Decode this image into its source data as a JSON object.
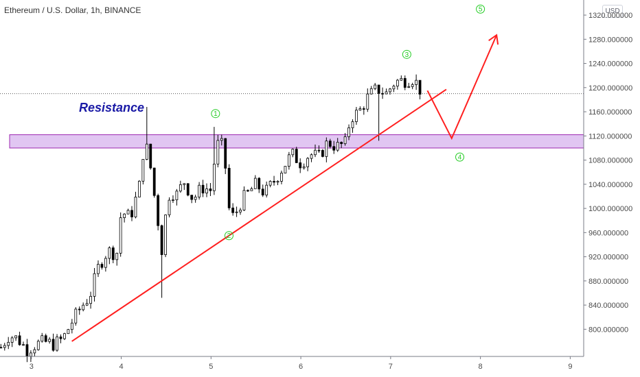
{
  "header": {
    "title": "Ethereum / U.S. Dollar, 1h, BINANCE",
    "currency_button": "USD"
  },
  "colors": {
    "resistance_fill": "#e1c6f2",
    "resistance_border": "#9c27b0",
    "drawing_line": "#ff1f1f",
    "wave_label": "#22cc22",
    "resistance_text": "#1a1aa6",
    "current_price_line": "#555555"
  },
  "chart_data": {
    "type": "candlestick",
    "title": "Ethereum / U.S. Dollar, 1h, BINANCE",
    "x_tick_labels": [
      "3",
      "4",
      "5",
      "6",
      "7",
      "8",
      "9"
    ],
    "x_ticks": [
      3,
      4,
      5,
      6,
      7,
      8,
      9
    ],
    "xlim": [
      2.65,
      9.15
    ],
    "y_tick_labels": [
      "1320.000000",
      "1280.000000",
      "1240.000000",
      "1200.000000",
      "1160.000000",
      "1120.000000",
      "1080.000000",
      "1040.000000",
      "1000.000000",
      "960.000000",
      "920.000000",
      "880.000000",
      "840.000000",
      "800.000000"
    ],
    "y_ticks": [
      1320,
      1280,
      1240,
      1200,
      1160,
      1120,
      1080,
      1040,
      1000,
      960,
      920,
      880,
      840,
      800
    ],
    "ylim": [
      755,
      1345
    ],
    "current_price": 1190,
    "resistance_zone": {
      "label": "Resistance",
      "low": 1100,
      "high": 1122
    },
    "trendline": {
      "start": [
        3.45,
        780
      ],
      "end": [
        7.62,
        1197
      ]
    },
    "projection": {
      "points": [
        [
          7.41,
          1195
        ],
        [
          7.68,
          1116
        ],
        [
          8.18,
          1287
        ]
      ]
    },
    "wave_labels": [
      {
        "label": "1",
        "x": 5.05,
        "y": 1157
      },
      {
        "label": "2",
        "x": 5.2,
        "y": 955
      },
      {
        "label": "3",
        "x": 7.18,
        "y": 1255
      },
      {
        "label": "4",
        "x": 7.77,
        "y": 1085
      },
      {
        "label": "5",
        "x": 8.0,
        "y": 1330
      }
    ],
    "price_path": [
      [
        2.66,
        770
      ],
      [
        2.75,
        790
      ],
      [
        2.85,
        784
      ],
      [
        2.95,
        766
      ],
      [
        3.05,
        775
      ],
      [
        3.15,
        779
      ],
      [
        3.25,
        775
      ],
      [
        3.35,
        784
      ],
      [
        3.45,
        812
      ],
      [
        3.55,
        836
      ],
      [
        3.65,
        855
      ],
      [
        3.75,
        905
      ],
      [
        3.85,
        930
      ],
      [
        3.95,
        925
      ],
      [
        4.0,
        995
      ],
      [
        4.1,
        985
      ],
      [
        4.2,
        1035
      ],
      [
        4.25,
        1100
      ],
      [
        4.3,
        1098
      ],
      [
        4.35,
        1040
      ],
      [
        4.4,
        990
      ],
      [
        4.45,
        930
      ],
      [
        4.5,
        995
      ],
      [
        4.55,
        1035
      ],
      [
        4.6,
        1018
      ],
      [
        4.7,
        1045
      ],
      [
        4.8,
        1015
      ],
      [
        4.9,
        1035
      ],
      [
        5.0,
        1030
      ],
      [
        5.05,
        1095
      ],
      [
        5.1,
        1115
      ],
      [
        5.15,
        1085
      ],
      [
        5.2,
        1000
      ],
      [
        5.25,
        985
      ],
      [
        5.35,
        1015
      ],
      [
        5.5,
        1040
      ],
      [
        5.6,
        1025
      ],
      [
        5.7,
        1045
      ],
      [
        5.8,
        1068
      ],
      [
        5.9,
        1090
      ],
      [
        6.0,
        1075
      ],
      [
        6.1,
        1090
      ],
      [
        6.2,
        1085
      ],
      [
        6.3,
        1110
      ],
      [
        6.4,
        1102
      ],
      [
        6.5,
        1108
      ],
      [
        6.55,
        1150
      ],
      [
        6.65,
        1160
      ],
      [
        6.75,
        1185
      ],
      [
        6.85,
        1198
      ],
      [
        6.95,
        1190
      ],
      [
        7.05,
        1210
      ],
      [
        7.15,
        1212
      ],
      [
        7.25,
        1215
      ],
      [
        7.3,
        1205
      ],
      [
        7.35,
        1190
      ]
    ]
  }
}
